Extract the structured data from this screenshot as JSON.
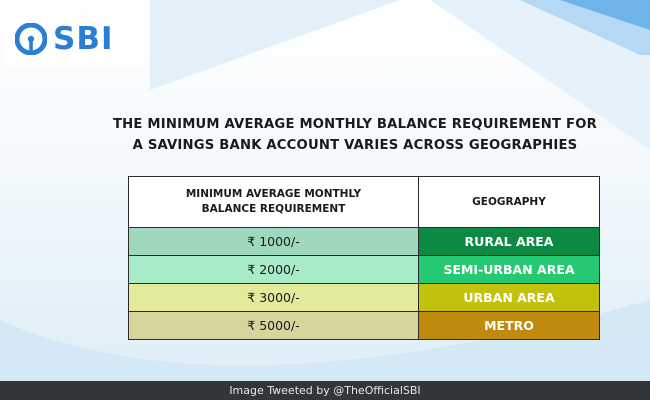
{
  "brand": {
    "name": "SBI",
    "logo_icon": "sbi-keyhole-logo-icon"
  },
  "headline": {
    "line1": "THE MINIMUM AVERAGE MONTHLY BALANCE REQUIREMENT FOR",
    "line2": "A SAVINGS BANK ACCOUNT VARIES ACROSS GEOGRAPHIES"
  },
  "table": {
    "header_amount_line1": "MINIMUM AVERAGE MONTHLY",
    "header_amount_line2": "BALANCE REQUIREMENT",
    "header_geography": "GEOGRAPHY",
    "rows": [
      {
        "amount": "₹ 1000/-",
        "geography": "RURAL AREA",
        "amount_bg": "#9fd8bd",
        "geo_bg": "#0c8a43"
      },
      {
        "amount": "₹ 2000/-",
        "geography": "SEMI-URBAN AREA",
        "amount_bg": "#a9ecca",
        "geo_bg": "#26c973"
      },
      {
        "amount": "₹ 3000/-",
        "geography": "URBAN AREA",
        "amount_bg": "#e3ea9c",
        "geo_bg": "#c2c20c"
      },
      {
        "amount": "₹ 5000/-",
        "geography": "METRO",
        "amount_bg": "#d6d59e",
        "geo_bg": "#c08a0e"
      }
    ]
  },
  "footer": {
    "credit": "Image Tweeted by @TheOfficialSBI"
  },
  "colors": {
    "brand_blue": "#2a7fd4",
    "footer_bg": "#333638",
    "deco_blue": "#4a9fe0"
  }
}
